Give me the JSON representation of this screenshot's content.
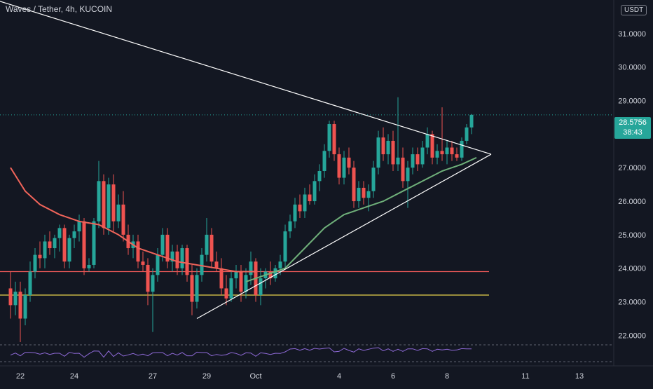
{
  "header": {
    "symbol": "Waves / Tether, 4h, KUCOIN",
    "currency": "USDT"
  },
  "price_tag": {
    "price": "28.5756",
    "countdown": "38:43"
  },
  "colors": {
    "background": "#131722",
    "up": "#26a69a",
    "down": "#ef5350",
    "ma_red": "#f0645a",
    "ma_green": "#6fb07a",
    "trendline": "#ffffff",
    "resistance": "#f05a5a",
    "support": "#e8d44d",
    "rsi": "#8f6ad8"
  },
  "chart_data": {
    "type": "candlestick",
    "y_axis": {
      "ticks": [
        "22.0000",
        "23.0000",
        "24.0000",
        "25.0000",
        "26.0000",
        "27.0000",
        "28.0000",
        "29.0000",
        "30.0000",
        "31.0000"
      ],
      "range": [
        21.8,
        32.0
      ]
    },
    "x_axis": {
      "ticks": [
        "22",
        "24",
        "27",
        "29",
        "Oct",
        "4",
        "6",
        "8",
        "11",
        "13"
      ]
    },
    "current_price": 28.5756,
    "horizontal_levels": [
      {
        "name": "resistance",
        "value": 23.9
      },
      {
        "name": "support",
        "value": 23.2
      }
    ],
    "candles": [
      [
        23.4,
        23.9,
        22.5,
        22.9
      ],
      [
        22.9,
        23.6,
        22.6,
        23.3
      ],
      [
        23.3,
        23.6,
        21.8,
        22.5
      ],
      [
        22.5,
        23.4,
        22.3,
        23.2
      ],
      [
        23.2,
        24.2,
        23.0,
        23.9
      ],
      [
        23.9,
        24.6,
        23.7,
        24.4
      ],
      [
        24.4,
        24.8,
        24.0,
        24.3
      ],
      [
        24.3,
        25.0,
        24.0,
        24.8
      ],
      [
        24.8,
        25.1,
        24.4,
        24.6
      ],
      [
        24.6,
        25.0,
        24.3,
        24.9
      ],
      [
        24.9,
        25.3,
        24.5,
        25.2
      ],
      [
        25.2,
        25.3,
        24.0,
        24.2
      ],
      [
        24.2,
        25.0,
        24.0,
        24.9
      ],
      [
        24.9,
        25.3,
        24.6,
        25.1
      ],
      [
        25.1,
        25.6,
        24.8,
        25.4
      ],
      [
        25.4,
        25.5,
        23.8,
        24.0
      ],
      [
        24.0,
        24.3,
        23.9,
        24.1
      ],
      [
        24.1,
        25.5,
        24.0,
        25.4
      ],
      [
        25.4,
        27.2,
        25.2,
        26.6
      ],
      [
        26.6,
        26.8,
        25.0,
        25.2
      ],
      [
        25.2,
        26.7,
        25.0,
        26.5
      ],
      [
        26.5,
        26.8,
        25.1,
        25.4
      ],
      [
        25.4,
        26.2,
        25.2,
        25.9
      ],
      [
        25.9,
        26.3,
        24.8,
        25.0
      ],
      [
        25.0,
        25.3,
        24.4,
        24.6
      ],
      [
        24.6,
        25.0,
        24.3,
        24.8
      ],
      [
        24.8,
        25.0,
        24.0,
        24.2
      ],
      [
        24.2,
        24.5,
        23.9,
        24.1
      ],
      [
        24.1,
        24.3,
        22.9,
        23.3
      ],
      [
        23.3,
        24.0,
        22.1,
        23.8
      ],
      [
        23.8,
        24.6,
        23.6,
        24.4
      ],
      [
        24.4,
        25.2,
        24.2,
        25.0
      ],
      [
        25.0,
        25.2,
        24.0,
        24.2
      ],
      [
        24.2,
        24.7,
        23.9,
        24.5
      ],
      [
        24.5,
        24.7,
        23.8,
        24.0
      ],
      [
        24.0,
        24.7,
        23.8,
        24.6
      ],
      [
        24.6,
        24.7,
        23.6,
        23.8
      ],
      [
        23.8,
        24.1,
        22.6,
        23.0
      ],
      [
        23.0,
        24.0,
        22.8,
        23.8
      ],
      [
        23.8,
        24.6,
        23.6,
        24.4
      ],
      [
        24.4,
        25.5,
        24.2,
        25.0
      ],
      [
        25.0,
        25.2,
        24.0,
        24.2
      ],
      [
        24.2,
        24.5,
        23.9,
        24.0
      ],
      [
        24.0,
        24.3,
        23.2,
        23.4
      ],
      [
        23.4,
        23.8,
        22.9,
        23.1
      ],
      [
        23.1,
        23.9,
        23.0,
        23.7
      ],
      [
        23.7,
        24.1,
        23.4,
        23.9
      ],
      [
        23.9,
        24.1,
        23.0,
        23.3
      ],
      [
        23.3,
        24.0,
        23.1,
        23.8
      ],
      [
        23.8,
        24.5,
        23.5,
        24.2
      ],
      [
        24.2,
        24.3,
        23.0,
        23.2
      ],
      [
        23.2,
        24.0,
        22.9,
        23.7
      ],
      [
        23.7,
        24.0,
        23.4,
        23.9
      ],
      [
        23.9,
        24.2,
        23.5,
        23.7
      ],
      [
        23.7,
        24.1,
        23.6,
        24.0
      ],
      [
        24.0,
        24.4,
        23.8,
        24.2
      ],
      [
        24.2,
        25.3,
        24.0,
        25.1
      ],
      [
        25.1,
        25.6,
        24.9,
        25.4
      ],
      [
        25.4,
        26.1,
        25.2,
        25.9
      ],
      [
        25.9,
        26.2,
        25.5,
        25.7
      ],
      [
        25.7,
        26.4,
        25.5,
        26.2
      ],
      [
        26.2,
        26.5,
        25.9,
        26.0
      ],
      [
        26.0,
        26.8,
        25.9,
        26.6
      ],
      [
        26.6,
        27.1,
        26.3,
        26.9
      ],
      [
        26.9,
        27.7,
        26.7,
        27.5
      ],
      [
        27.5,
        28.4,
        27.3,
        28.3
      ],
      [
        28.3,
        28.4,
        27.2,
        27.4
      ],
      [
        27.4,
        27.6,
        26.5,
        26.7
      ],
      [
        26.7,
        27.5,
        26.5,
        27.3
      ],
      [
        27.3,
        27.6,
        26.8,
        27.0
      ],
      [
        27.0,
        27.2,
        25.8,
        26.0
      ],
      [
        26.0,
        26.6,
        25.8,
        26.4
      ],
      [
        26.4,
        26.6,
        25.9,
        26.1
      ],
      [
        26.1,
        26.5,
        25.7,
        26.3
      ],
      [
        26.3,
        27.2,
        26.1,
        27.0
      ],
      [
        27.0,
        28.1,
        26.8,
        27.9
      ],
      [
        27.9,
        28.2,
        27.2,
        27.4
      ],
      [
        27.4,
        28.0,
        27.1,
        27.8
      ],
      [
        27.8,
        28.1,
        26.9,
        27.1
      ],
      [
        27.1,
        29.1,
        26.9,
        27.3
      ],
      [
        27.3,
        27.6,
        26.4,
        26.6
      ],
      [
        26.6,
        27.2,
        25.8,
        27.0
      ],
      [
        27.0,
        27.6,
        26.8,
        27.4
      ],
      [
        27.4,
        27.6,
        26.9,
        27.1
      ],
      [
        27.1,
        27.8,
        27.0,
        27.6
      ],
      [
        27.6,
        28.2,
        27.4,
        28.0
      ],
      [
        28.0,
        28.1,
        27.1,
        27.3
      ],
      [
        27.3,
        27.7,
        27.1,
        27.5
      ],
      [
        27.5,
        28.8,
        27.2,
        27.4
      ],
      [
        27.4,
        27.8,
        27.1,
        27.6
      ],
      [
        27.6,
        27.8,
        27.2,
        27.4
      ],
      [
        27.4,
        27.6,
        27.2,
        27.3
      ],
      [
        27.3,
        27.9,
        27.2,
        27.8
      ],
      [
        27.8,
        28.3,
        27.7,
        28.2
      ],
      [
        28.2,
        28.6,
        28.0,
        28.5756
      ]
    ],
    "moving_averages": [
      {
        "name": "ma_red",
        "points": [
          [
            0,
            27.0
          ],
          [
            3,
            26.3
          ],
          [
            6,
            25.9
          ],
          [
            10,
            25.6
          ],
          [
            14,
            25.4
          ],
          [
            18,
            25.3
          ],
          [
            22,
            25.0
          ],
          [
            26,
            24.6
          ],
          [
            30,
            24.4
          ],
          [
            34,
            24.2
          ],
          [
            38,
            24.1
          ],
          [
            42,
            24.0
          ],
          [
            46,
            23.9
          ],
          [
            50,
            23.9
          ]
        ]
      },
      {
        "name": "ma_green",
        "points": [
          [
            48,
            23.6
          ],
          [
            52,
            23.8
          ],
          [
            56,
            24.0
          ],
          [
            60,
            24.6
          ],
          [
            64,
            25.2
          ],
          [
            68,
            25.6
          ],
          [
            72,
            25.8
          ],
          [
            76,
            26.0
          ],
          [
            80,
            26.3
          ],
          [
            84,
            26.6
          ],
          [
            88,
            26.9
          ],
          [
            92,
            27.1
          ],
          [
            95,
            27.3
          ]
        ]
      }
    ],
    "trendlines": [
      {
        "name": "descending",
        "from": [
          -3,
          32.0
        ],
        "to": [
          98,
          27.4
        ]
      },
      {
        "name": "ascending",
        "from": [
          38,
          22.5
        ],
        "to": [
          98,
          27.4
        ]
      }
    ]
  }
}
